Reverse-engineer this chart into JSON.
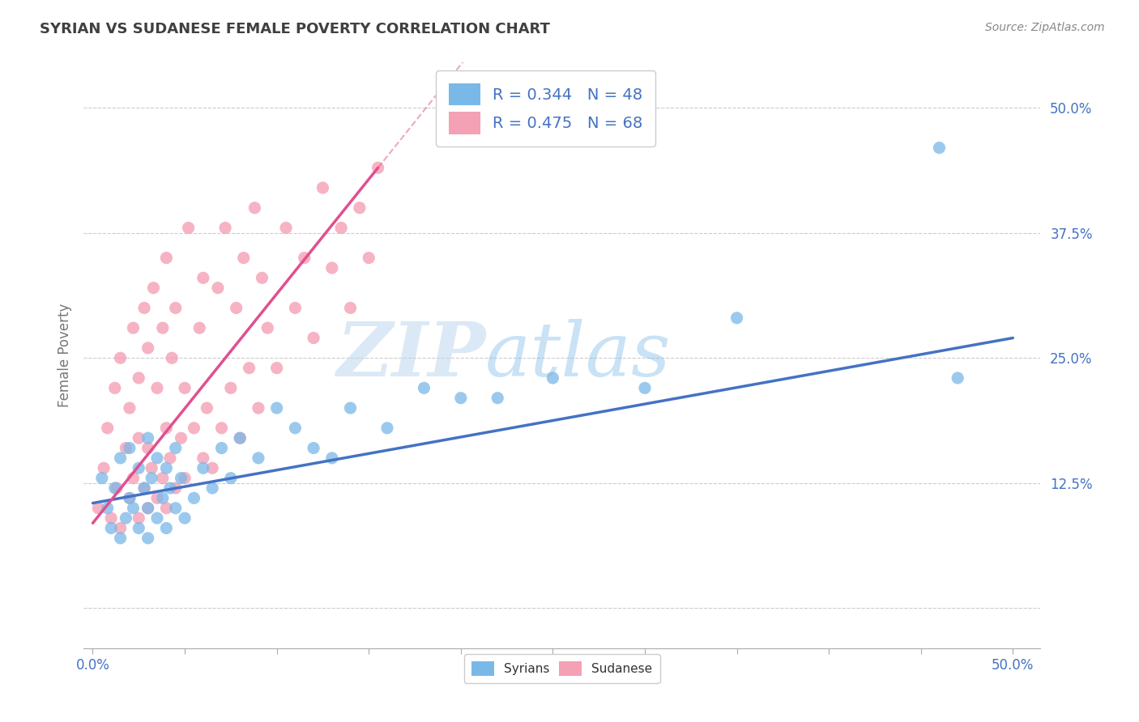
{
  "title": "SYRIAN VS SUDANESE FEMALE POVERTY CORRELATION CHART",
  "source_text": "Source: ZipAtlas.com",
  "ylabel": "Female Poverty",
  "yticks": [
    0.0,
    0.125,
    0.25,
    0.375,
    0.5
  ],
  "ytick_labels": [
    "",
    "12.5%",
    "25.0%",
    "37.5%",
    "50.0%"
  ],
  "xticks": [
    0.0,
    0.05,
    0.1,
    0.15,
    0.2,
    0.25,
    0.3,
    0.35,
    0.4,
    0.45,
    0.5
  ],
  "xlim": [
    -0.005,
    0.515
  ],
  "ylim": [
    -0.04,
    0.545
  ],
  "syrian_color": "#7ab8e8",
  "sudanese_color": "#f4a0b5",
  "syrian_line_color": "#4472c4",
  "sudanese_line_color": "#e05090",
  "R_syrian": 0.344,
  "N_syrian": 48,
  "R_sudanese": 0.475,
  "N_sudanese": 68,
  "watermark_zip": "ZIP",
  "watermark_atlas": "atlas",
  "background_color": "#ffffff",
  "grid_color": "#cccccc",
  "legend_text_color": "#4472c4",
  "title_color": "#404040",
  "axis_label_color": "#4472c4",
  "syrian_scatter_x": [
    0.005,
    0.008,
    0.01,
    0.012,
    0.015,
    0.015,
    0.018,
    0.02,
    0.02,
    0.022,
    0.025,
    0.025,
    0.028,
    0.03,
    0.03,
    0.03,
    0.032,
    0.035,
    0.035,
    0.038,
    0.04,
    0.04,
    0.042,
    0.045,
    0.045,
    0.048,
    0.05,
    0.055,
    0.06,
    0.065,
    0.07,
    0.075,
    0.08,
    0.09,
    0.1,
    0.11,
    0.12,
    0.13,
    0.14,
    0.16,
    0.18,
    0.2,
    0.22,
    0.25,
    0.3,
    0.35,
    0.46,
    0.47
  ],
  "syrian_scatter_y": [
    0.13,
    0.1,
    0.08,
    0.12,
    0.07,
    0.15,
    0.09,
    0.11,
    0.16,
    0.1,
    0.08,
    0.14,
    0.12,
    0.07,
    0.1,
    0.17,
    0.13,
    0.09,
    0.15,
    0.11,
    0.08,
    0.14,
    0.12,
    0.1,
    0.16,
    0.13,
    0.09,
    0.11,
    0.14,
    0.12,
    0.16,
    0.13,
    0.17,
    0.15,
    0.2,
    0.18,
    0.16,
    0.15,
    0.2,
    0.18,
    0.22,
    0.21,
    0.21,
    0.23,
    0.22,
    0.29,
    0.46,
    0.23
  ],
  "sudanese_scatter_x": [
    0.003,
    0.006,
    0.008,
    0.01,
    0.012,
    0.013,
    0.015,
    0.015,
    0.018,
    0.02,
    0.02,
    0.022,
    0.022,
    0.025,
    0.025,
    0.025,
    0.028,
    0.028,
    0.03,
    0.03,
    0.03,
    0.032,
    0.033,
    0.035,
    0.035,
    0.038,
    0.038,
    0.04,
    0.04,
    0.04,
    0.042,
    0.043,
    0.045,
    0.045,
    0.048,
    0.05,
    0.05,
    0.052,
    0.055,
    0.058,
    0.06,
    0.06,
    0.062,
    0.065,
    0.068,
    0.07,
    0.072,
    0.075,
    0.078,
    0.08,
    0.082,
    0.085,
    0.088,
    0.09,
    0.092,
    0.095,
    0.1,
    0.105,
    0.11,
    0.115,
    0.12,
    0.125,
    0.13,
    0.135,
    0.14,
    0.145,
    0.15,
    0.155
  ],
  "sudanese_scatter_y": [
    0.1,
    0.14,
    0.18,
    0.09,
    0.22,
    0.12,
    0.08,
    0.25,
    0.16,
    0.11,
    0.2,
    0.13,
    0.28,
    0.09,
    0.17,
    0.23,
    0.12,
    0.3,
    0.1,
    0.16,
    0.26,
    0.14,
    0.32,
    0.11,
    0.22,
    0.13,
    0.28,
    0.1,
    0.18,
    0.35,
    0.15,
    0.25,
    0.12,
    0.3,
    0.17,
    0.13,
    0.22,
    0.38,
    0.18,
    0.28,
    0.15,
    0.33,
    0.2,
    0.14,
    0.32,
    0.18,
    0.38,
    0.22,
    0.3,
    0.17,
    0.35,
    0.24,
    0.4,
    0.2,
    0.33,
    0.28,
    0.24,
    0.38,
    0.3,
    0.35,
    0.27,
    0.42,
    0.34,
    0.38,
    0.3,
    0.4,
    0.35,
    0.44
  ],
  "syrian_trendline_x": [
    0.0,
    0.5
  ],
  "syrian_trendline_y": [
    0.105,
    0.27
  ],
  "sudanese_trendline_x": [
    0.0,
    0.155
  ],
  "sudanese_trendline_y": [
    0.085,
    0.44
  ]
}
